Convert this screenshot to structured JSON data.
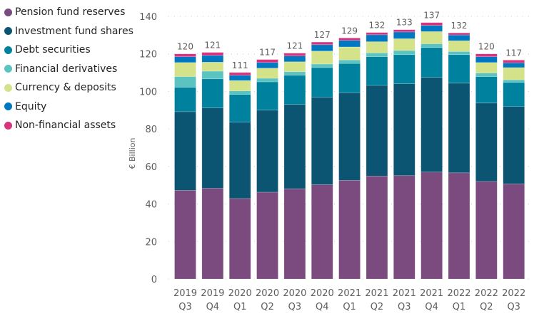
{
  "chart_data": {
    "type": "bar",
    "stacked": true,
    "ylabel": "€ Billion",
    "ylim": [
      0,
      140
    ],
    "yticks": [
      0,
      20,
      40,
      60,
      80,
      100,
      120,
      140
    ],
    "grid": true,
    "legend_placement": "top-left",
    "categories": [
      [
        "2019",
        "Q3"
      ],
      [
        "2019",
        "Q4"
      ],
      [
        "2020",
        "Q1"
      ],
      [
        "2020",
        "Q2"
      ],
      [
        "2020",
        "Q3"
      ],
      [
        "2020",
        "Q4"
      ],
      [
        "2021",
        "Q1"
      ],
      [
        "2021",
        "Q2"
      ],
      [
        "2021",
        "Q3"
      ],
      [
        "2021",
        "Q4"
      ],
      [
        "2022",
        "Q1"
      ],
      [
        "2022",
        "Q2"
      ],
      [
        "2022",
        "Q3"
      ]
    ],
    "total_labels": [
      "120",
      "121",
      "111",
      "117",
      "121",
      "127",
      "129",
      "132",
      "133",
      "137",
      "132",
      "120",
      "117"
    ],
    "series": [
      {
        "name": "Pension fund reserves",
        "color": "#7B4A7E",
        "values": [
          47.3,
          48.4,
          42.9,
          46.3,
          48.1,
          50.3,
          52.6,
          54.9,
          55.1,
          57.0,
          56.6,
          52.0,
          50.7
        ]
      },
      {
        "name": "Investment fund shares",
        "color": "#0B5572",
        "values": [
          41.9,
          42.8,
          40.7,
          43.7,
          45.0,
          46.6,
          46.7,
          48.3,
          49.0,
          50.5,
          47.8,
          41.8,
          41.3
        ]
      },
      {
        "name": "Debt securities",
        "color": "#00829F",
        "values": [
          13.0,
          15.5,
          14.8,
          15.1,
          15.5,
          15.8,
          15.6,
          15.3,
          15.5,
          15.9,
          15.2,
          14.1,
          12.8
        ]
      },
      {
        "name": "Financial derivatives",
        "color": "#5BC4C0",
        "values": [
          5.7,
          4.1,
          1.9,
          1.9,
          1.9,
          1.9,
          1.9,
          2.0,
          2.2,
          2.0,
          1.7,
          1.9,
          1.4
        ]
      },
      {
        "name": "Currency & deposits",
        "color": "#D4E38A",
        "values": [
          7.5,
          4.8,
          5.5,
          5.4,
          5.3,
          6.9,
          6.9,
          6.0,
          6.3,
          6.5,
          5.7,
          5.6,
          6.5
        ]
      },
      {
        "name": "Equity",
        "color": "#0078C1",
        "values": [
          3.1,
          3.6,
          2.8,
          3.0,
          3.1,
          3.4,
          3.5,
          3.7,
          3.6,
          3.3,
          3.1,
          3.1,
          2.5
        ]
      },
      {
        "name": "Non-financial assets",
        "color": "#D6347F",
        "values": [
          1.5,
          1.6,
          1.5,
          1.6,
          1.5,
          1.4,
          1.3,
          1.2,
          1.2,
          1.5,
          1.1,
          1.5,
          1.5
        ]
      }
    ]
  }
}
